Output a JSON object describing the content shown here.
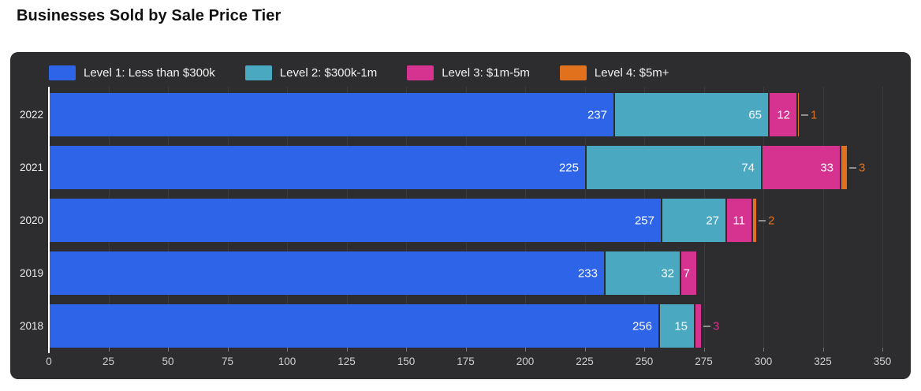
{
  "page": {
    "title": "Businesses Sold by Sale Price Tier"
  },
  "chart_data": {
    "type": "bar",
    "orientation": "horizontal",
    "stacked": true,
    "title": "Businesses Sold by Sale Price Tier",
    "categories": [
      "2022",
      "2021",
      "2020",
      "2019",
      "2018"
    ],
    "series": [
      {
        "name": "Level 1: Less than $300k",
        "color": "#2D64E8",
        "values": [
          237,
          225,
          257,
          233,
          256
        ]
      },
      {
        "name": "Level 2: $300k-1m",
        "color": "#4AA9C1",
        "values": [
          65,
          74,
          27,
          32,
          15
        ]
      },
      {
        "name": "Level 3: $1m-5m",
        "color": "#D5338F",
        "values": [
          12,
          33,
          11,
          7,
          3
        ]
      },
      {
        "name": "Level 4: $5m+",
        "color": "#E2711E",
        "values": [
          1,
          3,
          2,
          0,
          0
        ]
      }
    ],
    "totals": [
      315,
      335,
      297,
      272,
      274
    ],
    "xlabel": "",
    "ylabel": "",
    "x_ticks": [
      0,
      25,
      50,
      75,
      100,
      125,
      150,
      175,
      200,
      225,
      250,
      275,
      300,
      325,
      350
    ],
    "xlim": [
      0,
      355
    ],
    "grid": "vertical",
    "legend_position": "top-left",
    "colors": {
      "panel_background": "#2D2C2E",
      "page_background": "#ffffff",
      "gridline": "#3a393b",
      "axis_line": "#ffffff",
      "tick_label": "#cfcfcf",
      "category_label": "#eeeeee",
      "value_label": "#fafafa",
      "callout_line": "#8f8f8f",
      "title_text": "#111111"
    }
  }
}
